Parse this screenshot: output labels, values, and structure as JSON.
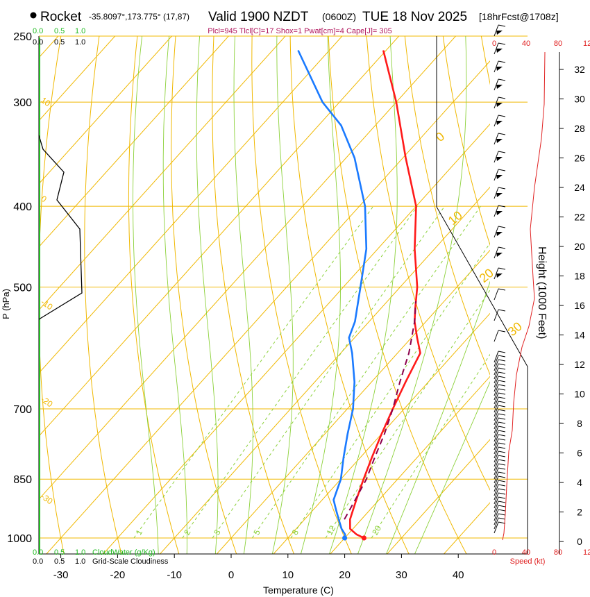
{
  "header": {
    "site": "Rocket",
    "coords": "-35.8097°,173.775° (17,87)",
    "valid": "Valid 1900 NZDT",
    "zulu": "(0600Z)",
    "date": "TUE 18 Nov 2025",
    "forecast": "[18hrFcst@1708z]",
    "indices": "Plcl=945 Tlcl[C]=17 Shox=1 Pwat[cm]=4 Cape[J]= 305"
  },
  "colors": {
    "temp": "#ff1a1a",
    "dew": "#1a7aff",
    "parcel": "#8b004b",
    "isotherm": "#f0b800",
    "mixing": "#8cd13a",
    "cloud": "#22bb22",
    "speed": "#e02020",
    "indices": "#b0145c"
  },
  "labels": {
    "x_axis": "Temperature (C)",
    "y_axis": "P (hPa)",
    "height_axis": "Height (1000 Feet)",
    "cloudwater": "CloudWater (g/Kg)",
    "cloudiness": "Grid-Scale Cloudiness",
    "speed": "Speed (kt)"
  },
  "cloud_scale": [
    "0.0",
    "0.5",
    "1.0"
  ],
  "speed_ticks": [
    "0",
    "40",
    "80",
    "12"
  ],
  "chart_data": {
    "type": "line",
    "title": "Skew-T sounding",
    "xlabel": "Temperature (C)",
    "ylabel": "P (hPa)",
    "x_ticks": [
      -30,
      -20,
      -10,
      0,
      10,
      20,
      30,
      40
    ],
    "pressure_ticks": [
      250,
      300,
      400,
      500,
      700,
      850,
      1000
    ],
    "height_ticks": [
      0,
      2,
      4,
      6,
      8,
      10,
      12,
      14,
      16,
      18,
      20,
      22,
      24,
      26,
      28,
      30,
      32
    ],
    "mixing_ratio_labels": [
      "1",
      "2",
      "3",
      "5",
      "8",
      "12",
      "20"
    ],
    "dry_adiabat_labels": [
      "-30",
      "-20",
      "-10",
      "0",
      "10",
      "20",
      "30",
      "40"
    ],
    "isotherm_labels": [
      "10",
      "0",
      "-10",
      "-20",
      "-30"
    ],
    "series": [
      {
        "name": "Temperature",
        "pressure": [
          1000,
          990,
          975,
          950,
          925,
          900,
          850,
          800,
          750,
          700,
          650,
          600,
          575,
          550,
          530,
          500,
          450,
          400,
          350,
          300,
          260
        ],
        "values": [
          23.4,
          21.5,
          19.5,
          18.0,
          17.0,
          16.0,
          14.0,
          12.0,
          10.0,
          8.0,
          6.0,
          4.0,
          1.0,
          -2.0,
          -4.0,
          -7.0,
          -13.5,
          -20.0,
          -29.5,
          -40.0,
          -50.5
        ]
      },
      {
        "name": "Dewpoint",
        "pressure": [
          1000,
          990,
          975,
          950,
          925,
          900,
          850,
          800,
          750,
          700,
          650,
          600,
          575,
          550,
          500,
          450,
          400,
          350,
          320,
          300,
          260
        ],
        "values": [
          20.0,
          19.5,
          18.0,
          16.0,
          14.0,
          12.0,
          10.0,
          7.0,
          4.0,
          1.0,
          -3.0,
          -8.0,
          -11.0,
          -12.5,
          -17.0,
          -22.0,
          -29.0,
          -38.5,
          -46.0,
          -53.0,
          -65.5
        ]
      },
      {
        "name": "Parcel",
        "pressure": [
          950,
          900,
          850,
          800,
          750,
          700,
          650,
          600,
          550,
          520
        ],
        "values": [
          17.0,
          15.8,
          14.5,
          12.5,
          10.5,
          8.0,
          5.0,
          2.0,
          -2.0,
          -5.0
        ]
      }
    ]
  }
}
